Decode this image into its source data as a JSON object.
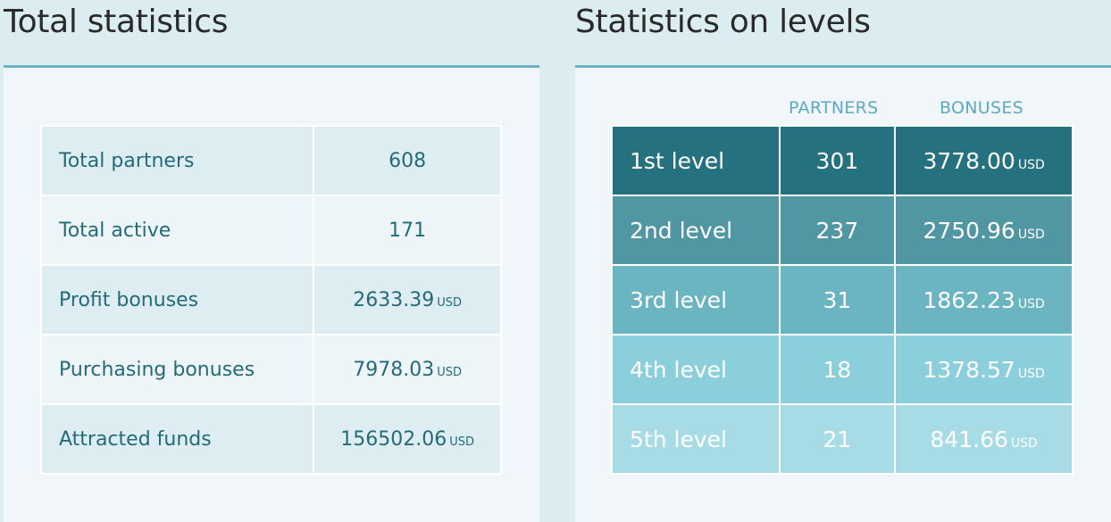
{
  "total": {
    "title": "Total statistics",
    "rows": [
      {
        "label": "Total partners",
        "value": "608",
        "unit": ""
      },
      {
        "label": "Total active",
        "value": "171",
        "unit": ""
      },
      {
        "label": "Profit bonuses",
        "value": "2633.39",
        "unit": "USD"
      },
      {
        "label": "Purchasing bonuses",
        "value": "7978.03",
        "unit": "USD"
      },
      {
        "label": "Attracted funds",
        "value": "156502.06",
        "unit": "USD"
      }
    ]
  },
  "levels": {
    "title": "Statistics on levels",
    "headers": {
      "partners": "PARTNERS",
      "bonuses": "BONUSES"
    },
    "rows": [
      {
        "level": "1st level",
        "partners": "301",
        "bonus": "3778.00",
        "unit": "USD",
        "color": "#26717f"
      },
      {
        "level": "2nd level",
        "partners": "237",
        "bonus": "2750.96",
        "unit": "USD",
        "color": "#5197a3"
      },
      {
        "level": "3rd level",
        "partners": "31",
        "bonus": "1862.23",
        "unit": "USD",
        "color": "#6bb4c2"
      },
      {
        "level": "4th level",
        "partners": "18",
        "bonus": "1378.57",
        "unit": "USD",
        "color": "#8ccfdc"
      },
      {
        "level": "5th level",
        "partners": "21",
        "bonus": "841.66",
        "unit": "USD",
        "color": "#a7dce6"
      }
    ]
  },
  "colors": {
    "background": "#dcedf2",
    "panel": "#f1f6fa",
    "accent_border": "#6ab3c4",
    "text_teal": "#246b78",
    "header_blue": "#5ea9c2"
  }
}
